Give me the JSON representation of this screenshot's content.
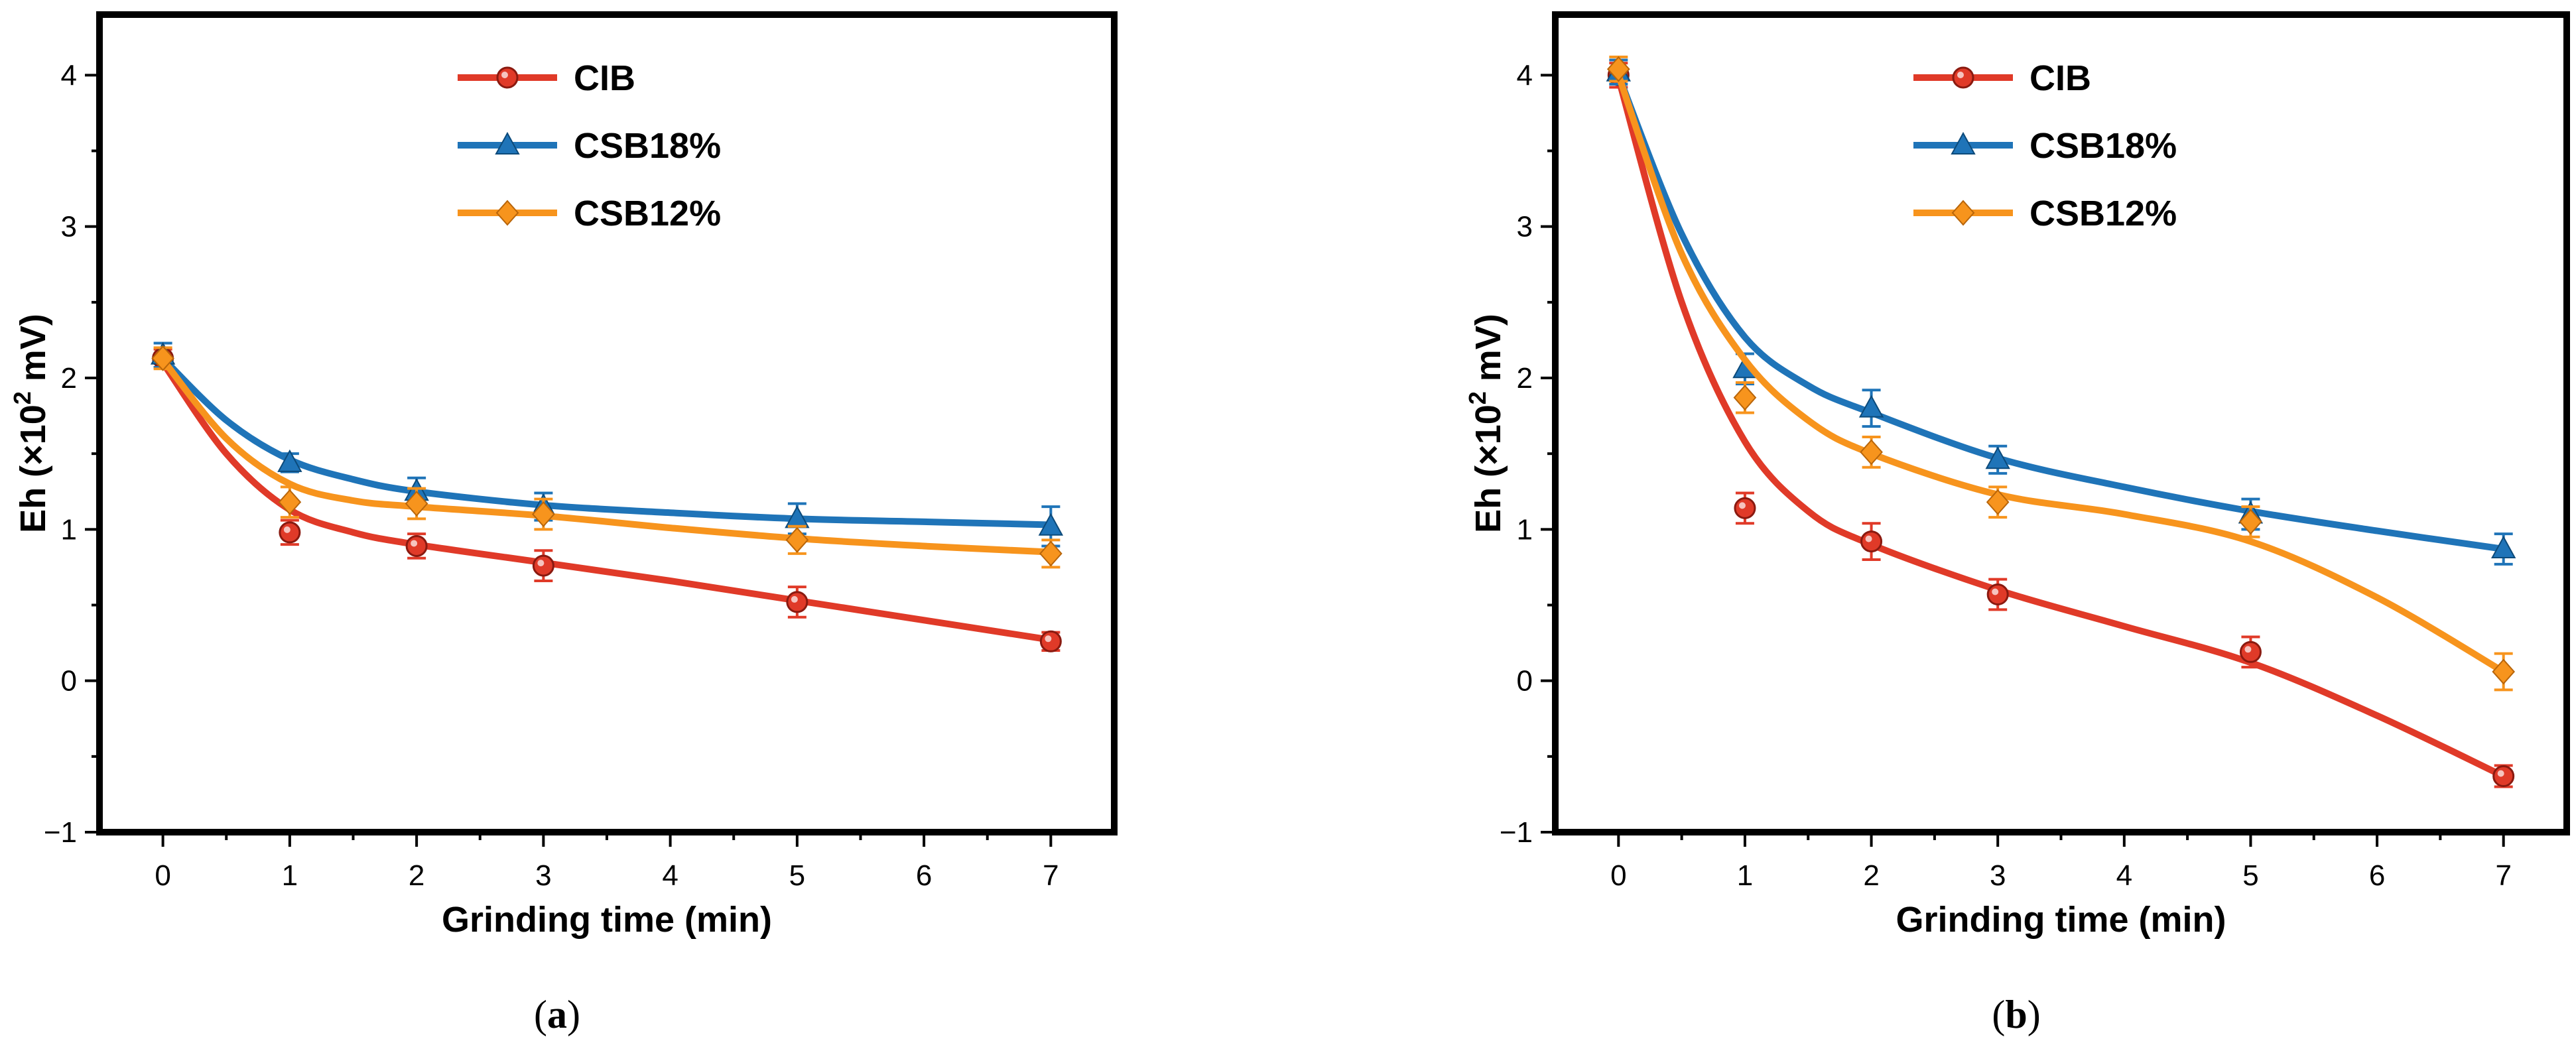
{
  "colors": {
    "CIB": "#e03a28",
    "CSB18%": "#1f74b8",
    "CSB12%": "#f7941d",
    "axis": "#000000"
  },
  "chart_data": [
    {
      "type": "line",
      "panel": "a",
      "caption": {
        "open": "(",
        "letter": "a",
        "close": ")"
      },
      "xlabel": "Grinding time (min)",
      "ylabel": {
        "pre": "Eh (×10",
        "sup": "2",
        "post": " mV)"
      },
      "xlim": [
        -0.5,
        7.5
      ],
      "ylim": [
        -1,
        4.4
      ],
      "xticks": [
        0,
        1,
        2,
        3,
        4,
        5,
        6,
        7
      ],
      "xtick_labels": [
        "0",
        "1",
        "2",
        "3",
        "4",
        "5",
        "6",
        "7"
      ],
      "yticks": [
        -1,
        0,
        1,
        2,
        3,
        4
      ],
      "ytick_labels": [
        "−1",
        "0",
        "1",
        "2",
        "3",
        "4"
      ],
      "legend_position": "top-center",
      "series": [
        {
          "name": "CIB",
          "marker": "circle",
          "x": [
            0,
            1,
            2,
            3,
            5,
            7
          ],
          "y": [
            2.13,
            0.98,
            0.89,
            0.76,
            0.52,
            0.26
          ],
          "err": [
            0.06,
            0.08,
            0.08,
            0.1,
            0.1,
            0.06
          ],
          "fit": [
            [
              0,
              2.1
            ],
            [
              0.5,
              1.5
            ],
            [
              1,
              1.13
            ],
            [
              1.5,
              0.98
            ],
            [
              2,
              0.9
            ],
            [
              3,
              0.78
            ],
            [
              4,
              0.66
            ],
            [
              5,
              0.53
            ],
            [
              6,
              0.4
            ],
            [
              7,
              0.27
            ]
          ]
        },
        {
          "name": "CSB18%",
          "marker": "triangle",
          "x": [
            0,
            1,
            2,
            3,
            5,
            7
          ],
          "y": [
            2.15,
            1.44,
            1.25,
            1.15,
            1.07,
            1.02
          ],
          "err": [
            0.08,
            0.06,
            0.09,
            0.09,
            0.1,
            0.13
          ],
          "fit": [
            [
              0,
              2.13
            ],
            [
              0.5,
              1.72
            ],
            [
              1,
              1.46
            ],
            [
              1.5,
              1.33
            ],
            [
              2,
              1.25
            ],
            [
              3,
              1.16
            ],
            [
              4,
              1.11
            ],
            [
              5,
              1.07
            ],
            [
              6,
              1.05
            ],
            [
              7,
              1.03
            ]
          ]
        },
        {
          "name": "CSB12%",
          "marker": "diamond",
          "x": [
            0,
            1,
            2,
            3,
            5,
            7
          ],
          "y": [
            2.13,
            1.18,
            1.17,
            1.1,
            0.93,
            0.84
          ],
          "err": [
            0.07,
            0.1,
            0.1,
            0.1,
            0.09,
            0.09
          ],
          "fit": [
            [
              0,
              2.12
            ],
            [
              0.5,
              1.6
            ],
            [
              1,
              1.3
            ],
            [
              1.5,
              1.19
            ],
            [
              2,
              1.15
            ],
            [
              3,
              1.09
            ],
            [
              4,
              1.01
            ],
            [
              5,
              0.94
            ],
            [
              6,
              0.89
            ],
            [
              7,
              0.85
            ]
          ]
        }
      ]
    },
    {
      "type": "line",
      "panel": "b",
      "caption": {
        "open": "(",
        "letter": "b",
        "close": ")"
      },
      "xlabel": "Grinding time (min)",
      "ylabel": {
        "pre": "Eh (×10",
        "sup": "2",
        "post": " mV)"
      },
      "xlim": [
        -0.5,
        7.5
      ],
      "ylim": [
        -1,
        4.4
      ],
      "xticks": [
        0,
        1,
        2,
        3,
        4,
        5,
        6,
        7
      ],
      "xtick_labels": [
        "0",
        "1",
        "2",
        "3",
        "4",
        "5",
        "6",
        "7"
      ],
      "yticks": [
        -1,
        0,
        1,
        2,
        3,
        4
      ],
      "ytick_labels": [
        "−1",
        "0",
        "1",
        "2",
        "3",
        "4"
      ],
      "legend_position": "top-center",
      "series": [
        {
          "name": "CIB",
          "marker": "circle",
          "x": [
            0,
            1,
            2,
            3,
            5,
            7
          ],
          "y": [
            4.0,
            1.14,
            0.92,
            0.57,
            0.19,
            -0.63
          ],
          "err": [
            0.08,
            0.1,
            0.12,
            0.1,
            0.1,
            0.07
          ],
          "fit": [
            [
              0,
              3.98
            ],
            [
              0.5,
              2.5
            ],
            [
              1,
              1.58
            ],
            [
              1.5,
              1.12
            ],
            [
              2,
              0.9
            ],
            [
              3,
              0.6
            ],
            [
              4,
              0.36
            ],
            [
              5,
              0.12
            ],
            [
              6,
              -0.23
            ],
            [
              7,
              -0.63
            ]
          ]
        },
        {
          "name": "CSB18%",
          "marker": "triangle",
          "x": [
            0,
            1,
            2,
            3,
            5,
            7
          ],
          "y": [
            4.02,
            2.06,
            1.8,
            1.46,
            1.1,
            0.87
          ],
          "err": [
            0.08,
            0.1,
            0.12,
            0.09,
            0.1,
            0.1
          ],
          "fit": [
            [
              0,
              4.0
            ],
            [
              0.5,
              2.95
            ],
            [
              1,
              2.27
            ],
            [
              1.5,
              1.95
            ],
            [
              2,
              1.77
            ],
            [
              3,
              1.47
            ],
            [
              4,
              1.28
            ],
            [
              5,
              1.12
            ],
            [
              6,
              0.99
            ],
            [
              7,
              0.87
            ]
          ]
        },
        {
          "name": "CSB12%",
          "marker": "diamond",
          "x": [
            0,
            1,
            2,
            3,
            5,
            7
          ],
          "y": [
            4.04,
            1.87,
            1.51,
            1.18,
            1.05,
            0.06
          ],
          "err": [
            0.08,
            0.1,
            0.1,
            0.1,
            0.1,
            0.12
          ],
          "fit": [
            [
              0,
              4.0
            ],
            [
              0.5,
              2.82
            ],
            [
              1,
              2.12
            ],
            [
              1.5,
              1.72
            ],
            [
              2,
              1.5
            ],
            [
              3,
              1.23
            ],
            [
              4,
              1.1
            ],
            [
              5,
              0.92
            ],
            [
              6,
              0.55
            ],
            [
              7,
              0.06
            ]
          ]
        }
      ]
    }
  ]
}
